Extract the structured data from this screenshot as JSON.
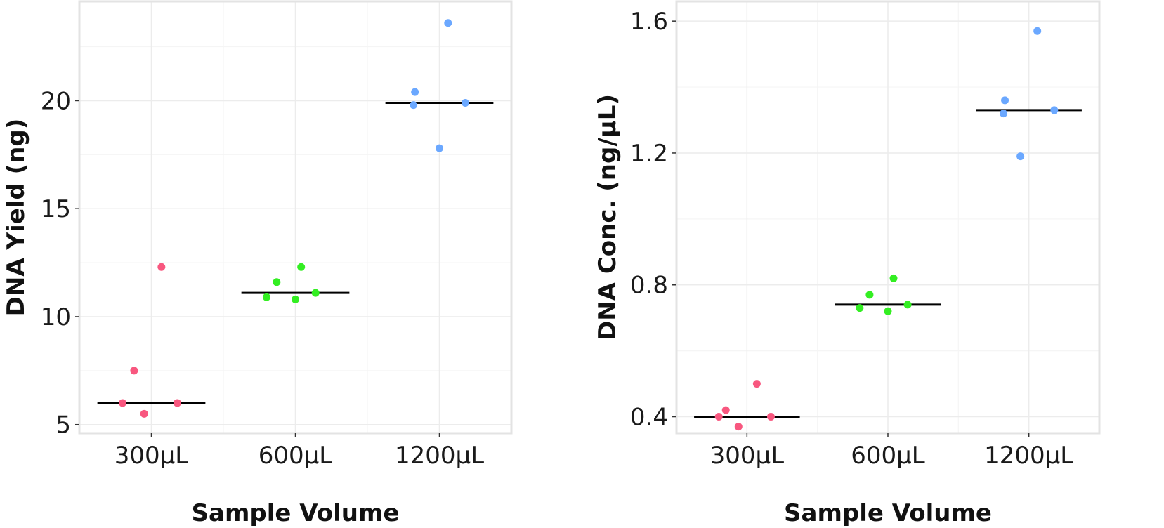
{
  "chart_data": [
    {
      "type": "scatter",
      "xlabel": "Sample Volume",
      "ylabel": "DNA Yield (ng)",
      "categories": [
        "300µL",
        "600µL",
        "1200µL"
      ],
      "ylim": [
        4.6,
        24.6
      ],
      "yticks": [
        5,
        10,
        15,
        20
      ],
      "ytick_labels": [
        "5",
        "10",
        "15",
        "20"
      ],
      "grid": true,
      "series": [
        {
          "category": "300µL",
          "color": "#f8577f",
          "points": [
            [
              -0.2,
              6.0
            ],
            [
              -0.12,
              7.5
            ],
            [
              -0.05,
              5.5
            ],
            [
              0.07,
              12.3
            ],
            [
              0.18,
              6.0
            ]
          ],
          "median": 6.0
        },
        {
          "category": "600µL",
          "color": "#33ee22",
          "points": [
            [
              -0.2,
              10.9
            ],
            [
              -0.13,
              11.6
            ],
            [
              0.0,
              10.8
            ],
            [
              0.04,
              12.3
            ],
            [
              0.14,
              11.1
            ]
          ],
          "median": 11.1
        },
        {
          "category": "1200µL",
          "color": "#6ba8ff",
          "points": [
            [
              -0.18,
              19.8
            ],
            [
              -0.17,
              20.4
            ],
            [
              0.0,
              17.8
            ],
            [
              0.06,
              23.6
            ],
            [
              0.18,
              19.9
            ]
          ],
          "median": 19.9
        }
      ]
    },
    {
      "type": "scatter",
      "xlabel": "Sample Volume",
      "ylabel": "DNA Conc. (ng/µL)",
      "categories": [
        "300µL",
        "600µL",
        "1200µL"
      ],
      "ylim": [
        0.35,
        1.66
      ],
      "yticks": [
        0.4,
        0.8,
        1.2,
        1.6
      ],
      "ytick_labels": [
        "0.4",
        "0.8",
        "1.2",
        "1.6"
      ],
      "grid": true,
      "series": [
        {
          "category": "300µL",
          "color": "#f8577f",
          "points": [
            [
              -0.2,
              0.4
            ],
            [
              -0.15,
              0.42
            ],
            [
              -0.06,
              0.37
            ],
            [
              0.07,
              0.5
            ],
            [
              0.17,
              0.4
            ]
          ],
          "median": 0.4
        },
        {
          "category": "600µL",
          "color": "#33ee22",
          "points": [
            [
              -0.2,
              0.73
            ],
            [
              -0.13,
              0.77
            ],
            [
              0.0,
              0.72
            ],
            [
              0.04,
              0.82
            ],
            [
              0.14,
              0.74
            ]
          ],
          "median": 0.74
        },
        {
          "category": "1200µL",
          "color": "#6ba8ff",
          "points": [
            [
              -0.18,
              1.32
            ],
            [
              -0.17,
              1.36
            ],
            [
              -0.06,
              1.19
            ],
            [
              0.06,
              1.57
            ],
            [
              0.18,
              1.33
            ]
          ],
          "median": 1.33
        }
      ]
    }
  ]
}
